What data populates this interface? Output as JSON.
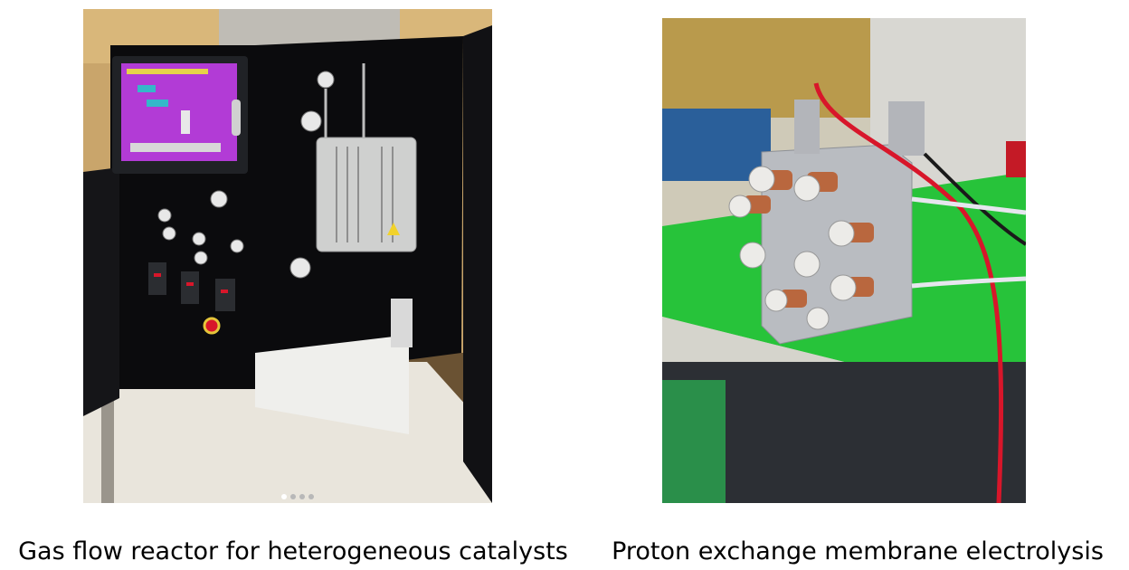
{
  "panels": [
    {
      "caption": "Gas flow reactor for heterogeneous catalysts",
      "photo_subject": "gas-flow-reactor-cabinet"
    },
    {
      "caption": "Proton exchange membrane electrolysis",
      "photo_subject": "pem-electrolysis-cell"
    }
  ],
  "colors": {
    "screen_magenta": "#b23bd6",
    "cabinet_black": "#0b0b0d",
    "bench_green": "#27c33a",
    "wire_red": "#d8162a",
    "copper": "#b9673e"
  }
}
